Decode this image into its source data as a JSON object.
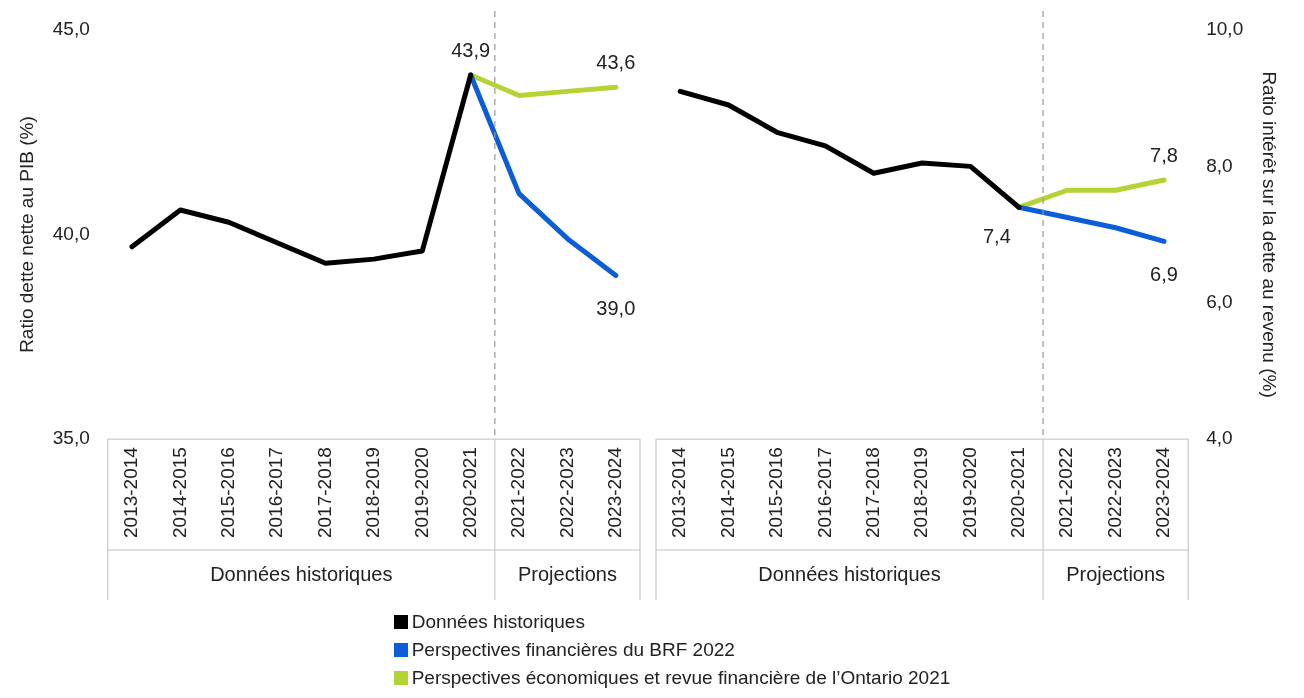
{
  "chart_data": [
    {
      "type": "line",
      "ylabel": "Ratio dette nette au PIB (%)",
      "categories": [
        "2013-2014",
        "2014-2015",
        "2015-2016",
        "2016-2017",
        "2017-2018",
        "2018-2019",
        "2019-2020",
        "2020-2021",
        "2021-2022",
        "2022-2023",
        "2023-2024"
      ],
      "series": [
        {
          "name": "Données historiques",
          "color": "#000000",
          "values": [
            39.7,
            40.6,
            40.3,
            39.8,
            39.3,
            39.4,
            39.6,
            43.9,
            null,
            null,
            null
          ],
          "value_labels": [
            null,
            null,
            null,
            null,
            null,
            null,
            null,
            "43,9",
            null,
            null,
            null
          ]
        },
        {
          "name": "Perspectives financières du BRF 2022",
          "color": "#0b5ed7",
          "values": [
            null,
            null,
            null,
            null,
            null,
            null,
            null,
            43.9,
            41.0,
            39.9,
            39.0
          ],
          "value_labels": [
            null,
            null,
            null,
            null,
            null,
            null,
            null,
            null,
            null,
            null,
            "39,0"
          ]
        },
        {
          "name": "Perspectives économiques et revue financière de l’Ontario 2021",
          "color": "#b5d334",
          "values": [
            null,
            null,
            null,
            null,
            null,
            null,
            null,
            43.9,
            43.4,
            43.5,
            43.6
          ],
          "value_labels": [
            null,
            null,
            null,
            null,
            null,
            null,
            null,
            null,
            null,
            null,
            "43,6"
          ]
        }
      ],
      "ylim": [
        35,
        45
      ],
      "yticks": [
        {
          "value": 35,
          "label": "35,0"
        },
        {
          "value": 40,
          "label": "40,0"
        },
        {
          "value": 45,
          "label": "45,0"
        }
      ],
      "annotations": [
        "Données historiques",
        "Projections"
      ],
      "grid": false,
      "legend": "bottom"
    },
    {
      "type": "line",
      "y2label": "Ratio intérêt sur la dette au revenu (%)",
      "categories": [
        "2013-2014",
        "2014-2015",
        "2015-2016",
        "2016-2017",
        "2017-2018",
        "2018-2019",
        "2019-2020",
        "2020-2021",
        "2021-2022",
        "2022-2023",
        "2023-2024"
      ],
      "series": [
        {
          "color": "#000000",
          "axis": "y2",
          "values": [
            9.1,
            8.9,
            8.5,
            8.3,
            7.9,
            8.05,
            8.0,
            7.4,
            null,
            null,
            null
          ],
          "value_labels": [
            null,
            null,
            null,
            null,
            null,
            null,
            null,
            "7,4",
            null,
            null,
            null
          ]
        },
        {
          "color": "#0b5ed7",
          "axis": "y2",
          "values": [
            null,
            null,
            null,
            null,
            null,
            null,
            null,
            7.4,
            7.25,
            7.1,
            6.9
          ],
          "value_labels": [
            null,
            null,
            null,
            null,
            null,
            null,
            null,
            null,
            null,
            null,
            "6,9"
          ]
        },
        {
          "color": "#b5d334",
          "axis": "y2",
          "values": [
            null,
            null,
            null,
            null,
            null,
            null,
            null,
            7.4,
            7.65,
            7.65,
            7.8
          ],
          "value_labels": [
            null,
            null,
            null,
            null,
            null,
            null,
            null,
            null,
            null,
            null,
            "7,8"
          ]
        }
      ],
      "y2lim": [
        4,
        10
      ],
      "y2ticks": [
        {
          "value": 4,
          "label": "4,0"
        },
        {
          "value": 6,
          "label": "6,0"
        },
        {
          "value": 8,
          "label": "8,0"
        },
        {
          "value": 10,
          "label": "10,0"
        }
      ],
      "annotations": [
        "Données historiques",
        "Projections"
      ],
      "grid": false
    }
  ]
}
